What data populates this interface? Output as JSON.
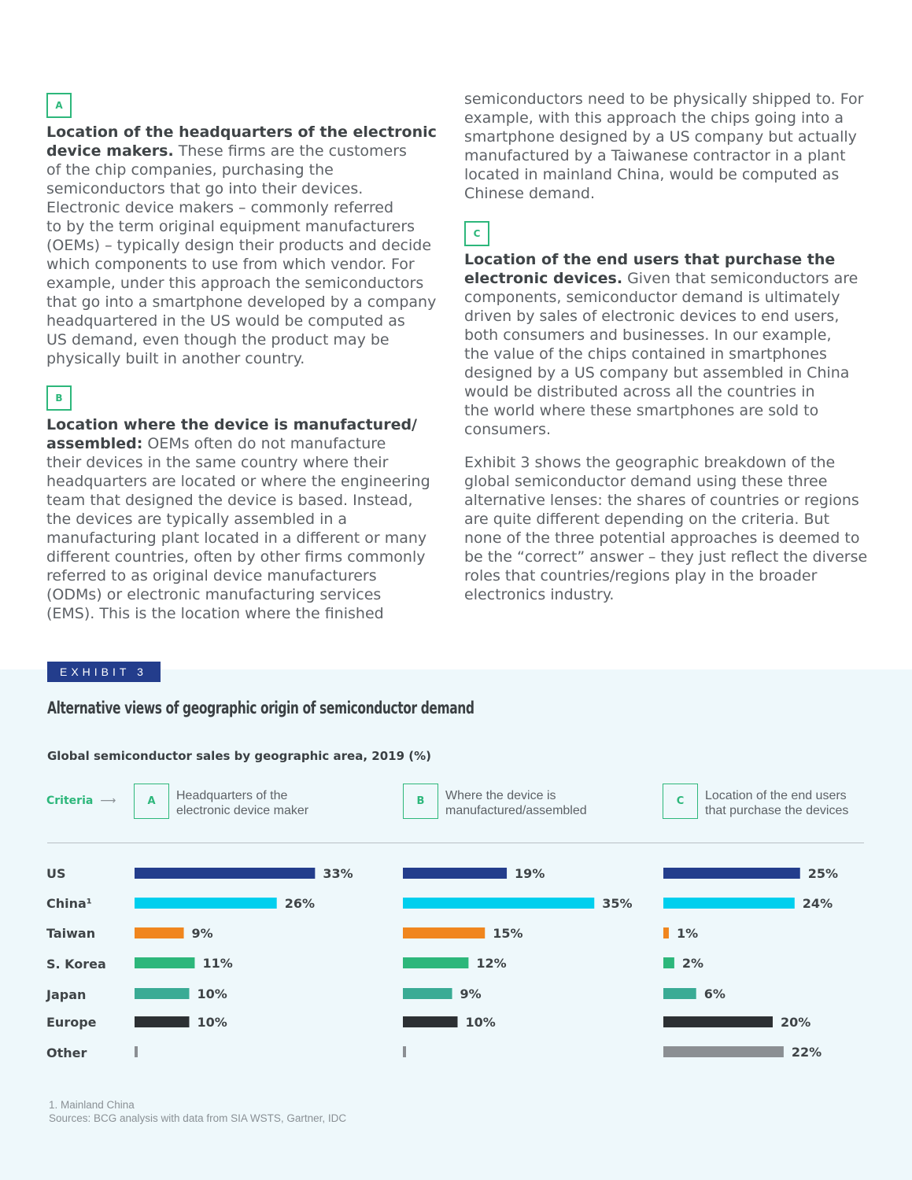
{
  "article": {
    "badge_a": "A",
    "a_bold": "Location of the headquarters of the electronic device makers.",
    "a_lines": [
      "These firms are the customers",
      "of the chip companies, purchasing the",
      "semiconductors that go into their devices.",
      "Electronic device makers – commonly referred",
      "to by the term original equipment manufacturers",
      "(OEMs) – typically design their products and decide",
      "which components to use from which vendor. For",
      "example, under this approach the semiconductors",
      "that go into a smartphone developed by a company",
      "headquartered in the US would be computed as",
      "US demand, even though the product may be",
      "physically built in another country."
    ],
    "badge_b": "B",
    "b_bold_1": "Location where the device is manufactured/",
    "b_bold_2": "assembled:",
    "b_first": "OEMs often do not manufacture",
    "b_lines": [
      "their devices in the same country where their",
      "headquarters are located or where the engineering",
      "team that designed the device is based. Instead,",
      "the devices are typically assembled in a",
      "manufacturing plant located in a different or many",
      "different countries, often by other firms commonly",
      "referred to as original device manufacturers",
      "(ODMs) or electronic manufacturing services",
      "(EMS). This is the location where the finished"
    ],
    "b_cont_lines": [
      "semiconductors need to be physically shipped to. For",
      "example, with this approach the chips going into a",
      "smartphone designed by a US company but actually",
      "manufactured by a Taiwanese contractor in a plant",
      "located in mainland China, would be computed as",
      "Chinese demand."
    ],
    "badge_c": "C",
    "c_bold_1": "Location of the end users that purchase the",
    "c_bold_2": "electronic devices.",
    "c_first": "Given that semiconductors are",
    "c_lines": [
      "components, semiconductor demand is ultimately",
      "driven by sales of electronic devices to end users,",
      "both consumers and businesses. In our example,",
      "the value of the chips contained in smartphones",
      "designed by a US company but assembled in China",
      "would be distributed across all the countries in",
      "the world where these smartphones are sold to",
      "consumers."
    ],
    "exhibit_lines": [
      "Exhibit 3 shows the geographic breakdown of the",
      "global semiconductor demand using these three",
      "alternative lenses: the shares of countries or regions",
      "are quite different depending on the criteria. But",
      "none of the three potential approaches is deemed to",
      "be the “correct” answer – they just reflect the diverse",
      "roles that countries/regions play in the broader",
      "electronics industry."
    ]
  },
  "exhibit": {
    "tag": "EXHIBIT 3",
    "title": "Alternative views of geographic origin of semiconductor demand",
    "subtitle": "Global semiconductor sales by geographic area, 2019 (%)",
    "criteria_label": "Criteria",
    "criteria_arrow": "⟶",
    "criteria": [
      {
        "letter": "A",
        "line1": "Headquarters of the",
        "line2": "electronic device maker"
      },
      {
        "letter": "B",
        "line1": "Where the device is",
        "line2": "manufactured/assembled"
      },
      {
        "letter": "C",
        "line1": "Location of the end users",
        "line2": "that purchase the devices"
      }
    ],
    "footnote": "1. Mainland China",
    "sources": "Sources: BCG analysis with data from SIA WSTS, Gartner, IDC"
  },
  "colors": {
    "accent_green": "#2db77b",
    "navy": "#233d8c",
    "US": "#233d8c",
    "China": "#00cfee",
    "Taiwan": "#f0861e",
    "S. Korea": "#2db77b",
    "Japan": "#3aab95",
    "Europe": "#2c3033",
    "Other": "#8b8f93"
  },
  "chart_data": {
    "type": "bar",
    "orientation": "horizontal",
    "categories": [
      "US",
      "China¹",
      "Taiwan",
      "S. Korea",
      "Japan",
      "Europe",
      "Other"
    ],
    "series": [
      {
        "name": "Headquarters of the electronic device maker",
        "values": [
          33,
          26,
          9,
          11,
          10,
          10,
          null
        ],
        "labels": [
          "33%",
          "26%",
          "9%",
          "11%",
          "10%",
          "10%",
          ""
        ]
      },
      {
        "name": "Where the device is manufactured/assembled",
        "values": [
          19,
          35,
          15,
          12,
          9,
          10,
          null
        ],
        "labels": [
          "19%",
          "35%",
          "15%",
          "12%",
          "9%",
          "10%",
          ""
        ]
      },
      {
        "name": "Location of the end users that purchase the devices",
        "values": [
          25,
          24,
          1,
          2,
          6,
          20,
          22
        ],
        "labels": [
          "25%",
          "24%",
          "1%",
          "2%",
          "6%",
          "20%",
          "22%"
        ]
      }
    ],
    "unit": "%"
  }
}
